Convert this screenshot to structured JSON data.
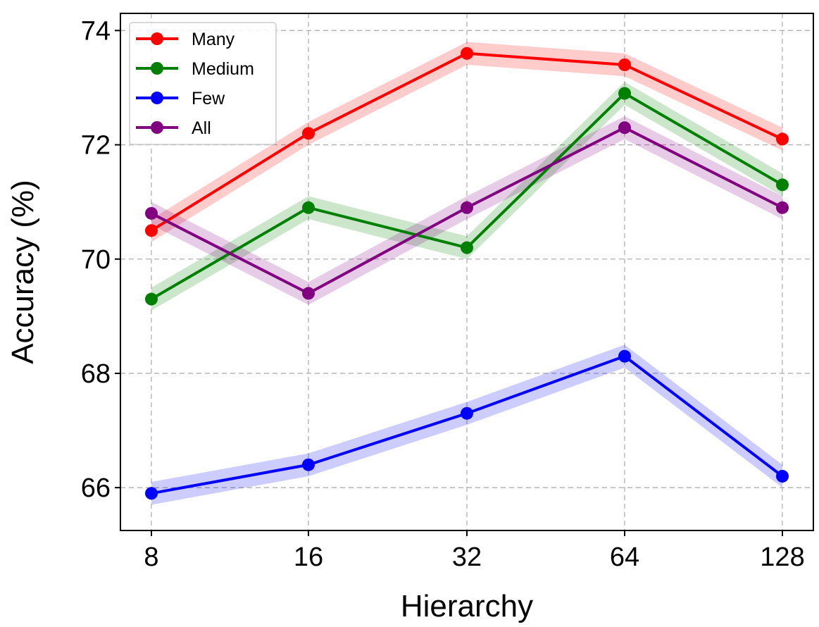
{
  "chart_data": {
    "type": "line",
    "title": "",
    "xlabel": "Hierarchy",
    "ylabel": "Accuracy (%)",
    "categories": [
      "8",
      "16",
      "32",
      "64",
      "128"
    ],
    "y_ticks": [
      66,
      68,
      70,
      72,
      74
    ],
    "ylim": [
      65.25,
      74.3
    ],
    "grid": true,
    "legend_position": "top-left",
    "shaded_band_halfwidth": 0.2,
    "series": [
      {
        "name": "Many",
        "color": "#ff0000",
        "values": [
          70.5,
          72.2,
          73.6,
          73.4,
          72.1
        ]
      },
      {
        "name": "Medium",
        "color": "#008000",
        "values": [
          69.3,
          70.9,
          70.2,
          72.9,
          71.3
        ]
      },
      {
        "name": "Few",
        "color": "#0000ff",
        "values": [
          65.9,
          66.4,
          67.3,
          68.3,
          66.2
        ]
      },
      {
        "name": "All",
        "color": "#800080",
        "values": [
          70.8,
          69.4,
          70.9,
          72.3,
          70.9
        ]
      }
    ]
  }
}
